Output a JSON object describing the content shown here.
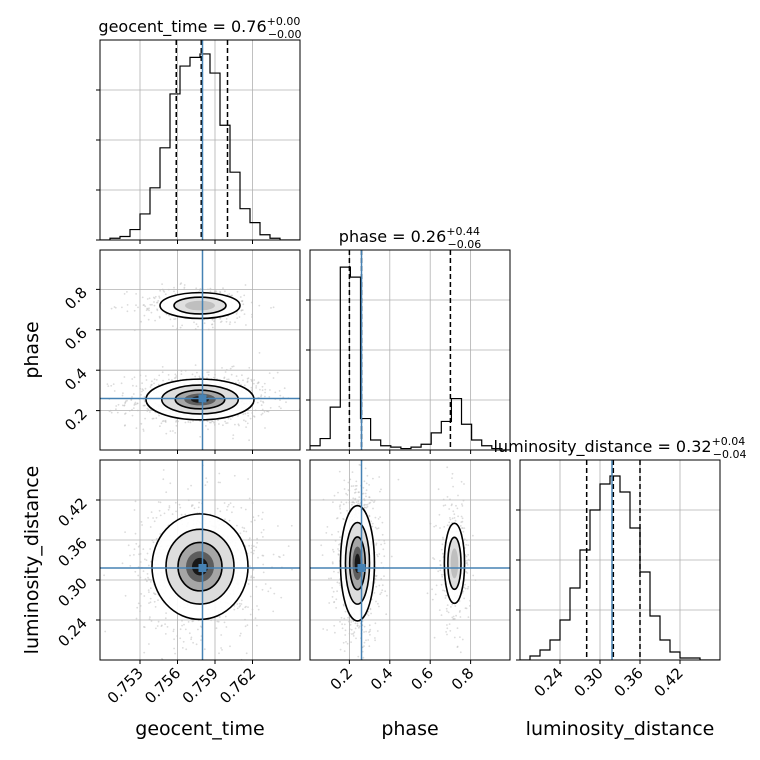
{
  "chart_data": {
    "type": "corner",
    "parameters": [
      "geocent_time",
      "phase",
      "luminosity_distance"
    ],
    "truths": [
      0.758,
      0.26,
      0.318
    ],
    "titles": [
      {
        "parameter": "geocent_time",
        "text": "geocent_time = 0.76",
        "sup": "+0.00",
        "sub": "−0.00"
      },
      {
        "parameter": "phase",
        "text": "phase = 0.26",
        "sup": "+0.44",
        "sub": "−0.06"
      },
      {
        "parameter": "luminosity_distance",
        "text": "luminosity_distance = 0.32",
        "sup": "+0.04",
        "sub": "−0.04"
      }
    ],
    "xlabels": [
      "geocent_time",
      "phase",
      "luminosity_distance"
    ],
    "ylabels": [
      "phase",
      "luminosity_distance"
    ],
    "ranges": [
      [
        0.7498,
        0.7658
      ],
      [
        0.005,
        0.995
      ],
      [
        0.18,
        0.48
      ]
    ],
    "ticks": {
      "geocent_time": [
        0.753,
        0.756,
        0.759,
        0.762
      ],
      "phase": [
        0.2,
        0.4,
        0.6,
        0.8
      ],
      "luminosity_distance": [
        0.24,
        0.3,
        0.36,
        0.42
      ]
    },
    "tick_labels": {
      "geocent_time": [
        "0.753",
        "0.756",
        "0.759",
        "0.762"
      ],
      "phase": [
        "0.2",
        "0.4",
        "0.6",
        "0.8"
      ],
      "luminosity_distance": [
        "0.24",
        "0.30",
        "0.36",
        "0.42"
      ]
    },
    "quantile_lines": {
      "geocent_time": [
        0.7559,
        0.7579,
        0.76
      ],
      "phase": [
        0.2,
        0.26,
        0.7
      ],
      "luminosity_distance": [
        0.28,
        0.32,
        0.36
      ]
    },
    "histograms": {
      "geocent_time": {
        "edges": [
          0.7498,
          0.7506,
          0.7514,
          0.7522,
          0.753,
          0.7538,
          0.7546,
          0.7554,
          0.7562,
          0.757,
          0.7578,
          0.7586,
          0.7594,
          0.7602,
          0.761,
          0.7618,
          0.7626,
          0.7634,
          0.7642,
          0.765,
          0.7658
        ],
        "counts": [
          0,
          1,
          2,
          6,
          15,
          30,
          53,
          84,
          100,
          105,
          107,
          96,
          66,
          39,
          18,
          10,
          3,
          1,
          0,
          0
        ],
        "ymax": 115
      },
      "phase": {
        "edges": [
          0.005,
          0.055,
          0.105,
          0.155,
          0.205,
          0.255,
          0.305,
          0.355,
          0.405,
          0.455,
          0.505,
          0.555,
          0.605,
          0.655,
          0.705,
          0.755,
          0.805,
          0.855,
          0.905,
          0.955,
          0.995
        ],
        "counts": [
          3,
          8,
          30,
          128,
          121,
          22,
          7,
          3,
          2,
          1,
          2,
          4,
          12,
          20,
          36,
          18,
          7,
          3,
          1,
          0
        ],
        "ymax": 140
      },
      "luminosity_distance": {
        "edges": [
          0.18,
          0.195,
          0.21,
          0.225,
          0.24,
          0.255,
          0.27,
          0.285,
          0.3,
          0.315,
          0.33,
          0.345,
          0.36,
          0.375,
          0.39,
          0.405,
          0.42,
          0.435,
          0.45,
          0.465,
          0.48
        ],
        "counts": [
          0,
          2,
          5,
          10,
          20,
          36,
          55,
          75,
          88,
          92,
          84,
          66,
          44,
          22,
          10,
          4,
          1,
          1,
          0,
          0
        ],
        "ymax": 100
      }
    },
    "kde_2d": [
      {
        "x": "geocent_time",
        "y": "phase",
        "modes": [
          {
            "cx": 0.7578,
            "cy": 0.255,
            "sx": 0.0018,
            "sy": 0.042,
            "w": 1.0
          },
          {
            "cx": 0.7578,
            "cy": 0.72,
            "sx": 0.0016,
            "sy": 0.032,
            "w": 0.35
          }
        ]
      },
      {
        "x": "geocent_time",
        "y": "luminosity_distance",
        "modes": [
          {
            "cx": 0.7578,
            "cy": 0.32,
            "sx": 0.0016,
            "sy": 0.033,
            "w": 1.0
          }
        ]
      },
      {
        "x": "phase",
        "y": "luminosity_distance",
        "modes": [
          {
            "cx": 0.24,
            "cy": 0.325,
            "sx": 0.035,
            "sy": 0.036,
            "w": 1.0
          },
          {
            "cx": 0.72,
            "cy": 0.325,
            "sx": 0.025,
            "sy": 0.03,
            "w": 0.35
          }
        ]
      }
    ],
    "truth_color": "#4682b4",
    "grid": true
  }
}
